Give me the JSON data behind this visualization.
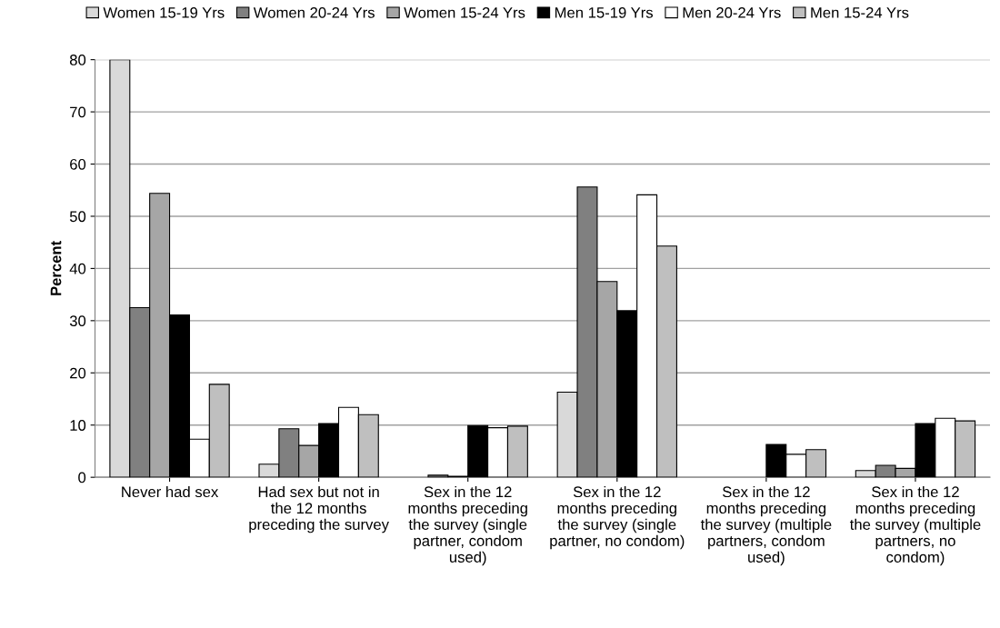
{
  "chart_data": {
    "type": "bar",
    "ylabel": "Percent",
    "categories": [
      "Never had sex",
      "Had sex but not in the 12 months preceding the survey",
      "Sex in the 12 months preceding the survey (single partner, condom used)",
      "Sex in the 12 months preceding the survey (single partner, no condom)",
      "Sex in the 12 months preceding the survey (multiple partners, condom used)",
      "Sex in the 12 months preceding the survey (multiple partners, no condom)"
    ],
    "series": [
      {
        "name": "Women 15-19 Yrs",
        "color": "#d9d9d9",
        "values": [
          80,
          2.5,
          0,
          16.3,
          0,
          1.3
        ]
      },
      {
        "name": "Women 20-24 Yrs",
        "color": "#808080",
        "values": [
          32.5,
          9.3,
          0.4,
          55.6,
          0,
          2.3
        ]
      },
      {
        "name": "Women 15-24 Yrs",
        "color": "#a6a6a6",
        "values": [
          54.4,
          6.1,
          0.2,
          37.5,
          0,
          1.7
        ]
      },
      {
        "name": "Men 15-19 Yrs",
        "color": "#000000",
        "values": [
          31.1,
          10.3,
          9.9,
          31.9,
          6.3,
          10.3
        ]
      },
      {
        "name": "Men 20-24 Yrs",
        "color": "#ffffff",
        "values": [
          7.3,
          13.4,
          9.5,
          54.1,
          4.4,
          11.3
        ]
      },
      {
        "name": "Men 15-24 Yrs",
        "color": "#bfbfbf",
        "values": [
          17.8,
          12.0,
          9.8,
          44.3,
          5.3,
          10.8
        ]
      }
    ],
    "ylim": [
      0,
      80
    ],
    "yticks": [
      0,
      10,
      20,
      30,
      40,
      50,
      60,
      70,
      80
    ],
    "grid": "y",
    "legend": "top"
  }
}
